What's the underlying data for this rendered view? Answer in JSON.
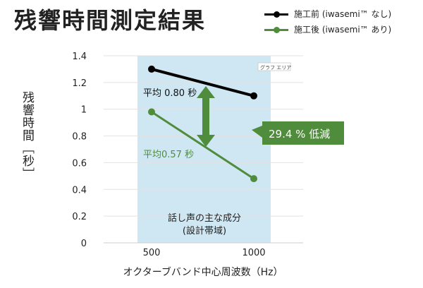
{
  "title": "残響時間測定結果",
  "colors": {
    "before": "#000000",
    "after": "#4f8c3b",
    "band": "#cfe7f3",
    "arrow": "#4f8c3b",
    "badge_bg": "#4f8c3b",
    "badge_text": "#ffffff"
  },
  "chart_data": {
    "type": "line",
    "x": [
      500,
      1000
    ],
    "x_tick_labels": [
      "500",
      "1000"
    ],
    "ylim": [
      0,
      1.4
    ],
    "y_ticks": [
      0,
      0.2,
      0.4,
      0.6,
      0.8,
      1,
      1.2,
      1.4
    ],
    "y_tick_labels": [
      "0",
      "0.2",
      "0.4",
      "0.6",
      "0.8",
      "1",
      "1.2",
      "1.4"
    ],
    "xlabel": "オクターブバンド中心周波数（Hz）",
    "ylabel": "残響時間［秒］",
    "grid": "horizontal",
    "legend_position": "top-right",
    "series": [
      {
        "name": "施工前 (iwasemi™ なし)",
        "values": [
          1.3,
          1.1
        ],
        "color": "#000000"
      },
      {
        "name": "施工後 (iwasemi™ あり)",
        "values": [
          0.98,
          0.48
        ],
        "color": "#4f8c3b"
      }
    ],
    "annotations": {
      "before_avg": "平均 0.80 秒",
      "after_avg": "平均0.57 秒",
      "reduction": "29.4 % 低減",
      "band_label_line1": "話し声の主な成分",
      "band_label_line2": "(設計帯域)",
      "plot_area_tag": "グラフ エリア"
    }
  }
}
